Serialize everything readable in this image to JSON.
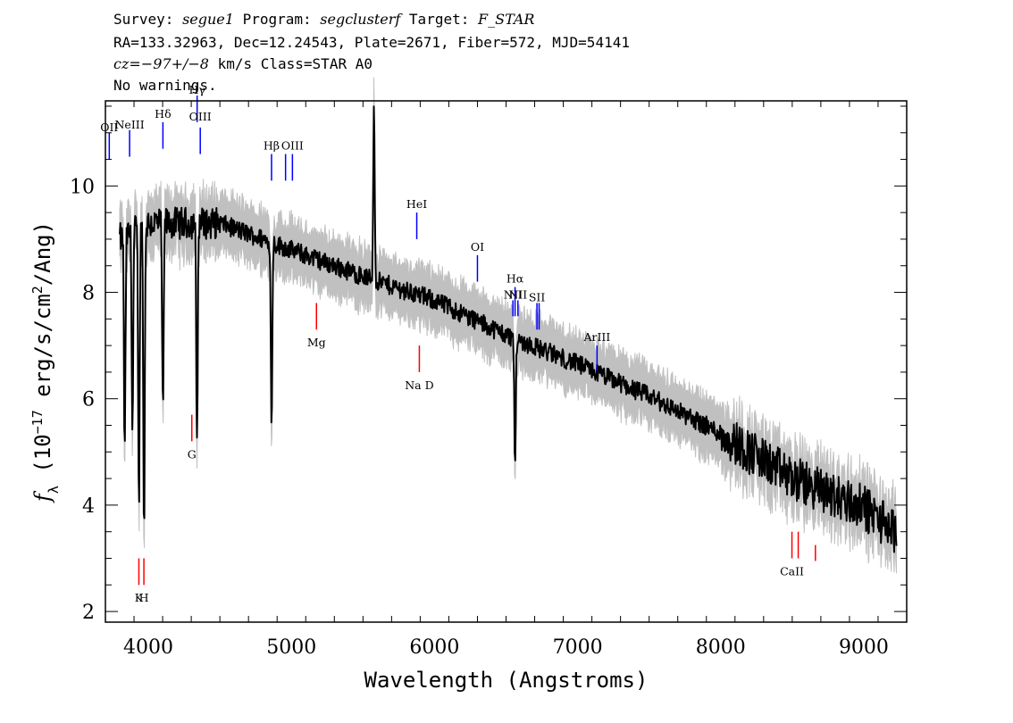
{
  "header": {
    "line1": {
      "survey_label": "Survey:",
      "survey": "segue1",
      "program_label": "Program:",
      "program": "segclusterf",
      "target_label": "Target:",
      "target": "F_STAR"
    },
    "line2": "RA=133.32963, Dec=12.24543, Plate=2671, Fiber=572, MJD=54141",
    "line3": {
      "cz": "cz=−97+/−8",
      "rest": " km/s Class=STAR A0"
    },
    "line4": "No warnings."
  },
  "chart_data": {
    "type": "line",
    "xlabel": "Wavelength (Angstroms)",
    "ylabel": "f_λ (10^-17 erg/s/cm^2/Ang)",
    "xlim": [
      3700,
      9300
    ],
    "ylim": [
      1.8,
      11.6
    ],
    "x_ticks": [
      4000,
      5000,
      6000,
      7000,
      8000,
      9000
    ],
    "y_ticks": [
      2,
      4,
      6,
      8,
      10
    ],
    "grid": false,
    "series": [
      {
        "role": "flux",
        "color": "#000000",
        "continuum": [
          [
            3800,
            9.0
          ],
          [
            4000,
            9.3
          ],
          [
            4500,
            9.3
          ],
          [
            5000,
            8.8
          ],
          [
            5500,
            8.3
          ],
          [
            6000,
            7.85
          ],
          [
            6500,
            7.2
          ],
          [
            7000,
            6.65
          ],
          [
            7500,
            6.05
          ],
          [
            8000,
            5.35
          ],
          [
            8500,
            4.5
          ],
          [
            9000,
            3.95
          ],
          [
            9230,
            3.5
          ]
        ],
        "features": [
          {
            "x": 3835,
            "y": 4.9
          },
          {
            "x": 3889,
            "y": 5.4
          },
          {
            "x": 3934,
            "y": 3.9
          },
          {
            "x": 3970,
            "y": 3.3
          },
          {
            "x": 4102,
            "y": 5.6
          },
          {
            "x": 4340,
            "y": 5.1
          },
          {
            "x": 4861,
            "y": 5.4
          },
          {
            "x": 5577,
            "y": 11.6
          },
          {
            "x": 6563,
            "y": 4.7
          },
          {
            "x": 9230,
            "y": 2.8
          }
        ]
      },
      {
        "role": "error",
        "color": "#c0c0c0"
      }
    ],
    "emission_lines": [
      {
        "label": "OII",
        "x": 3727,
        "ylo": 10.5,
        "yhi": 11.0,
        "label_y": 11.1,
        "color": "#0000ff"
      },
      {
        "label": "NeIII",
        "x": 3869,
        "ylo": 10.55,
        "yhi": 11.05,
        "label_y": 11.15,
        "color": "#0000ff"
      },
      {
        "label": "Hδ",
        "x": 4102,
        "ylo": 10.7,
        "yhi": 11.2,
        "label_y": 11.35,
        "color": "#0000ff"
      },
      {
        "label": "Hγ",
        "x": 4341,
        "ylo": 11.2,
        "yhi": 11.7,
        "label_y": 11.8,
        "color": "#0000ff"
      },
      {
        "label": "OIII",
        "x": 4363,
        "ylo": 10.6,
        "yhi": 11.1,
        "label_y": 11.3,
        "color": "#0000ff"
      },
      {
        "label": "Hβ",
        "x": 4861,
        "ylo": 10.1,
        "yhi": 10.6,
        "label_y": 10.75,
        "color": "#0000ff"
      },
      {
        "label": "OIII",
        "x": 4959,
        "ylo": 10.1,
        "yhi": 10.6,
        "label_y": -1,
        "color": "#0000ff"
      },
      {
        "label": "OIII",
        "x": 5007,
        "ylo": 10.1,
        "yhi": 10.6,
        "label_y": 10.75,
        "color": "#0000ff"
      },
      {
        "label": "HeI",
        "x": 5876,
        "ylo": 9.0,
        "yhi": 9.5,
        "label_y": 9.65,
        "color": "#0000ff"
      },
      {
        "label": "OI",
        "x": 6300,
        "ylo": 8.2,
        "yhi": 8.7,
        "label_y": 8.85,
        "color": "#0000ff"
      },
      {
        "label": "NII",
        "x": 6548,
        "ylo": 7.55,
        "yhi": 7.85,
        "label_y": 7.95,
        "color": "#0000ff"
      },
      {
        "label": "Hα",
        "x": 6563,
        "ylo": 7.55,
        "yhi": 8.1,
        "label_y": 8.25,
        "color": "#0000ff"
      },
      {
        "label": "NII",
        "x": 6583,
        "ylo": 7.55,
        "yhi": 7.85,
        "label_y": 7.95,
        "color": "#0000ff"
      },
      {
        "label": "SII",
        "x": 6716,
        "ylo": 7.3,
        "yhi": 7.8,
        "label_y": 7.9,
        "color": "#0000ff"
      },
      {
        "label": "SII",
        "x": 6731,
        "ylo": 7.3,
        "yhi": 7.8,
        "label_y": -1,
        "color": "#0000ff"
      },
      {
        "label": "ArIII",
        "x": 7136,
        "ylo": 6.5,
        "yhi": 7.0,
        "label_y": 7.15,
        "color": "#0000ff"
      }
    ],
    "absorption_lines": [
      {
        "label": "Mg",
        "x": 5175,
        "ylo": 7.3,
        "yhi": 7.8,
        "label_y": 7.05,
        "color": "#ff0000"
      },
      {
        "label": "Na D",
        "x": 5894,
        "ylo": 6.5,
        "yhi": 7.0,
        "label_y": 6.25,
        "color": "#ff0000"
      },
      {
        "label": "G",
        "x": 4304,
        "ylo": 5.2,
        "yhi": 5.7,
        "label_y": 4.95,
        "color": "#ff0000"
      },
      {
        "label": "K",
        "x": 3934,
        "ylo": 2.5,
        "yhi": 3.0,
        "label_y": 2.25,
        "color": "#ff0000"
      },
      {
        "label": "H",
        "x": 3969,
        "ylo": 2.5,
        "yhi": 3.0,
        "label_y": 2.25,
        "color": "#ff0000"
      },
      {
        "label": "CaII",
        "x": 8498,
        "ylo": 3.0,
        "yhi": 3.5,
        "label_y": 2.75,
        "color": "#ff0000"
      },
      {
        "label": "CaII",
        "x": 8542,
        "ylo": 3.0,
        "yhi": 3.5,
        "label_y": -1,
        "color": "#ff0000"
      },
      {
        "label": "CaII",
        "x": 8662,
        "ylo": 2.95,
        "yhi": 3.25,
        "label_y": -1,
        "color": "#ff0000"
      }
    ]
  }
}
